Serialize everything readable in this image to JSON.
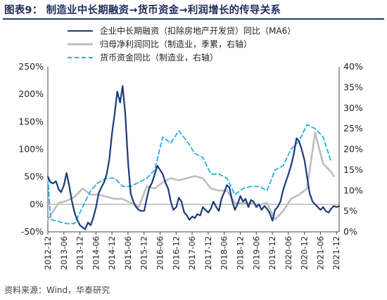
{
  "title": "图表9：  制造业中长期融资→货币资金→利润增长的传导关系",
  "source": "资料来源：Wind，华泰研究",
  "chart_data": {
    "type": "line",
    "title": "图表9：  制造业中长期融资→货币资金→利润增长的传导关系",
    "x_labels": [
      "2012-12",
      "2013-06",
      "2013-12",
      "2014-06",
      "2014-12",
      "2015-06",
      "2015-12",
      "2016-06",
      "2016-12",
      "2017-06",
      "2017-12",
      "2018-06",
      "2018-12",
      "2019-06",
      "2019-12",
      "2020-06",
      "2020-12",
      "2021-06",
      "2021-12"
    ],
    "x_start": "2012-12",
    "x_end": "2022-01",
    "left_axis": {
      "ticks": [
        "-50%",
        "0%",
        "50%",
        "100%",
        "150%",
        "200%",
        "250%"
      ],
      "range": [
        -50,
        250
      ]
    },
    "right_axis": {
      "ticks": [
        "0%",
        "5%",
        "10%",
        "15%",
        "20%",
        "25%",
        "30%",
        "35%",
        "40%"
      ],
      "range": [
        0,
        40
      ]
    },
    "legend_position": "top",
    "series": [
      {
        "name": "企业中长期融资（扣除房地产开发贷）同比（MA6）",
        "axis": "left",
        "color": "#1a3a7a",
        "style": "solid",
        "values": [
          [
            2012.92,
            50
          ],
          [
            2013.0,
            40
          ],
          [
            2013.08,
            38
          ],
          [
            2013.17,
            42
          ],
          [
            2013.25,
            28
          ],
          [
            2013.33,
            22
          ],
          [
            2013.42,
            35
          ],
          [
            2013.5,
            57
          ],
          [
            2013.58,
            35
          ],
          [
            2013.67,
            5
          ],
          [
            2013.75,
            -15
          ],
          [
            2013.83,
            -28
          ],
          [
            2013.92,
            -38
          ],
          [
            2014.0,
            -42
          ],
          [
            2014.08,
            -45
          ],
          [
            2014.17,
            -33
          ],
          [
            2014.25,
            -38
          ],
          [
            2014.33,
            -25
          ],
          [
            2014.42,
            -5
          ],
          [
            2014.5,
            20
          ],
          [
            2014.58,
            30
          ],
          [
            2014.67,
            40
          ],
          [
            2014.75,
            55
          ],
          [
            2014.83,
            80
          ],
          [
            2014.92,
            130
          ],
          [
            2015.0,
            165
          ],
          [
            2015.08,
            205
          ],
          [
            2015.17,
            185
          ],
          [
            2015.25,
            215
          ],
          [
            2015.33,
            165
          ],
          [
            2015.42,
            75
          ],
          [
            2015.5,
            20
          ],
          [
            2015.58,
            5
          ],
          [
            2015.67,
            -5
          ],
          [
            2015.75,
            -10
          ],
          [
            2015.83,
            -12
          ],
          [
            2015.92,
            -12
          ],
          [
            2016.0,
            10
          ],
          [
            2016.08,
            30
          ],
          [
            2016.17,
            40
          ],
          [
            2016.25,
            55
          ],
          [
            2016.33,
            70
          ],
          [
            2016.42,
            62
          ],
          [
            2016.5,
            55
          ],
          [
            2016.58,
            40
          ],
          [
            2016.67,
            28
          ],
          [
            2016.75,
            5
          ],
          [
            2016.83,
            -10
          ],
          [
            2016.92,
            -5
          ],
          [
            2017.0,
            12
          ],
          [
            2017.08,
            5
          ],
          [
            2017.17,
            -15
          ],
          [
            2017.25,
            -20
          ],
          [
            2017.33,
            -28
          ],
          [
            2017.42,
            -22
          ],
          [
            2017.5,
            -25
          ],
          [
            2017.58,
            -18
          ],
          [
            2017.67,
            -20
          ],
          [
            2017.75,
            -5
          ],
          [
            2017.83,
            -10
          ],
          [
            2017.92,
            -15
          ],
          [
            2018.0,
            -8
          ],
          [
            2018.08,
            5
          ],
          [
            2018.17,
            -5
          ],
          [
            2018.25,
            -12
          ],
          [
            2018.33,
            10
          ],
          [
            2018.42,
            22
          ],
          [
            2018.5,
            35
          ],
          [
            2018.58,
            30
          ],
          [
            2018.67,
            5
          ],
          [
            2018.75,
            -10
          ],
          [
            2018.83,
            0
          ],
          [
            2018.92,
            15
          ],
          [
            2019.0,
            5
          ],
          [
            2019.08,
            10
          ],
          [
            2019.17,
            -5
          ],
          [
            2019.25,
            8
          ],
          [
            2019.33,
            5
          ],
          [
            2019.42,
            -5
          ],
          [
            2019.5,
            0
          ],
          [
            2019.58,
            -10
          ],
          [
            2019.67,
            -3
          ],
          [
            2019.75,
            -8
          ],
          [
            2019.83,
            -15
          ],
          [
            2019.92,
            -30
          ],
          [
            2020.0,
            -10
          ],
          [
            2020.08,
            -5
          ],
          [
            2020.17,
            5
          ],
          [
            2020.25,
            25
          ],
          [
            2020.33,
            40
          ],
          [
            2020.42,
            55
          ],
          [
            2020.5,
            70
          ],
          [
            2020.58,
            90
          ],
          [
            2020.67,
            120
          ],
          [
            2020.75,
            115
          ],
          [
            2020.83,
            100
          ],
          [
            2020.92,
            80
          ],
          [
            2021.0,
            50
          ],
          [
            2021.08,
            20
          ],
          [
            2021.17,
            5
          ],
          [
            2021.25,
            0
          ],
          [
            2021.33,
            -5
          ],
          [
            2021.42,
            -10
          ],
          [
            2021.5,
            -5
          ],
          [
            2021.58,
            -12
          ],
          [
            2021.67,
            -15
          ],
          [
            2021.75,
            -8
          ],
          [
            2021.83,
            -3
          ],
          [
            2021.92,
            -5
          ],
          [
            2022.0,
            -3
          ]
        ]
      },
      {
        "name": "归母净利润同比（制造业，季累，右轴）",
        "axis": "right",
        "color": "#bdbdbd",
        "style": "solid",
        "values": [
          [
            2012.92,
            3
          ],
          [
            2013.25,
            7
          ],
          [
            2013.5,
            7.5
          ],
          [
            2013.75,
            8.5
          ],
          [
            2014.0,
            10.5
          ],
          [
            2014.25,
            9
          ],
          [
            2014.5,
            9
          ],
          [
            2014.75,
            8.5
          ],
          [
            2015.0,
            8
          ],
          [
            2015.25,
            8
          ],
          [
            2015.5,
            7
          ],
          [
            2015.75,
            6
          ],
          [
            2016.0,
            11
          ],
          [
            2016.25,
            10.5
          ],
          [
            2016.5,
            12
          ],
          [
            2016.75,
            13
          ],
          [
            2017.0,
            12.5
          ],
          [
            2017.25,
            13
          ],
          [
            2017.5,
            13.5
          ],
          [
            2017.75,
            13
          ],
          [
            2018.0,
            10.5
          ],
          [
            2018.25,
            10
          ],
          [
            2018.5,
            10
          ],
          [
            2018.75,
            7
          ],
          [
            2019.0,
            7
          ],
          [
            2019.25,
            7
          ],
          [
            2019.5,
            6.5
          ],
          [
            2019.75,
            7
          ],
          [
            2020.0,
            3
          ],
          [
            2020.25,
            5
          ],
          [
            2020.5,
            8
          ],
          [
            2020.75,
            9
          ],
          [
            2021.0,
            10.5
          ],
          [
            2021.25,
            24
          ],
          [
            2021.5,
            16.5
          ],
          [
            2021.75,
            14.5
          ],
          [
            2021.83,
            13.5
          ]
        ]
      },
      {
        "name": "货币资金同比（制造业，右轴）",
        "axis": "right",
        "color": "#22b0e0",
        "style": "dashed",
        "values": [
          [
            2012.92,
            13
          ],
          [
            2013.0,
            3
          ],
          [
            2013.25,
            2.5
          ],
          [
            2013.5,
            2
          ],
          [
            2013.75,
            2
          ],
          [
            2014.0,
            6
          ],
          [
            2014.25,
            10
          ],
          [
            2014.5,
            12
          ],
          [
            2014.75,
            13
          ],
          [
            2015.0,
            13
          ],
          [
            2015.25,
            11
          ],
          [
            2015.5,
            11
          ],
          [
            2015.75,
            12
          ],
          [
            2016.0,
            13
          ],
          [
            2016.25,
            15
          ],
          [
            2016.5,
            23
          ],
          [
            2016.75,
            21.5
          ],
          [
            2017.0,
            24.5
          ],
          [
            2017.25,
            22
          ],
          [
            2017.5,
            19
          ],
          [
            2017.75,
            18
          ],
          [
            2018.0,
            14
          ],
          [
            2018.25,
            14
          ],
          [
            2018.5,
            13
          ],
          [
            2018.75,
            9
          ],
          [
            2019.0,
            10.5
          ],
          [
            2019.25,
            11
          ],
          [
            2019.5,
            11
          ],
          [
            2019.75,
            10
          ],
          [
            2020.0,
            15
          ],
          [
            2020.25,
            16
          ],
          [
            2020.5,
            20
          ],
          [
            2020.75,
            22
          ],
          [
            2021.0,
            26
          ],
          [
            2021.25,
            25
          ],
          [
            2021.5,
            23
          ],
          [
            2021.75,
            17
          ]
        ]
      }
    ]
  }
}
